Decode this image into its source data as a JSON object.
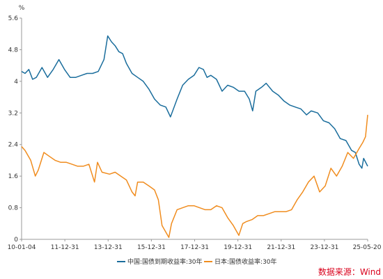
{
  "chart_data": {
    "type": "line",
    "title": "",
    "xlabel": "",
    "ylabel": "",
    "y_unit": "%",
    "xlim": [
      "2010-01-04",
      "2025-05-20"
    ],
    "ylim": [
      0,
      5.6
    ],
    "y_ticks": [
      "0",
      "0.8",
      "1.6",
      "2.4",
      "3.2",
      "4",
      "4.8",
      "5.6"
    ],
    "x_ticks": [
      "10-01-04",
      "11-12-31",
      "13-12-31",
      "15-12-31",
      "17-12-31",
      "19-12-31",
      "21-12-31",
      "23-12-31",
      "25-05-20"
    ],
    "grid": false,
    "legend_position": "bottom",
    "source": "数据来源：Wind",
    "series": [
      {
        "name": "中国:国债到期收益率:30年",
        "color": "#1a6d9c",
        "points": [
          [
            "2010-01-04",
            4.25
          ],
          [
            "2010-03-01",
            4.2
          ],
          [
            "2010-05-01",
            4.3
          ],
          [
            "2010-07-01",
            4.05
          ],
          [
            "2010-09-01",
            4.1
          ],
          [
            "2010-12-01",
            4.35
          ],
          [
            "2011-03-01",
            4.1
          ],
          [
            "2011-06-01",
            4.3
          ],
          [
            "2011-09-01",
            4.55
          ],
          [
            "2011-12-01",
            4.3
          ],
          [
            "2012-03-01",
            4.1
          ],
          [
            "2012-06-01",
            4.1
          ],
          [
            "2012-09-01",
            4.15
          ],
          [
            "2012-12-01",
            4.2
          ],
          [
            "2013-03-01",
            4.2
          ],
          [
            "2013-06-01",
            4.25
          ],
          [
            "2013-09-01",
            4.55
          ],
          [
            "2013-11-01",
            5.15
          ],
          [
            "2014-01-01",
            5.0
          ],
          [
            "2014-03-01",
            4.9
          ],
          [
            "2014-05-01",
            4.75
          ],
          [
            "2014-07-01",
            4.7
          ],
          [
            "2014-09-01",
            4.45
          ],
          [
            "2014-12-01",
            4.2
          ],
          [
            "2015-03-01",
            4.1
          ],
          [
            "2015-06-01",
            4.0
          ],
          [
            "2015-09-01",
            3.8
          ],
          [
            "2015-12-01",
            3.55
          ],
          [
            "2016-03-01",
            3.4
          ],
          [
            "2016-06-01",
            3.35
          ],
          [
            "2016-08-15",
            3.1
          ],
          [
            "2016-12-01",
            3.55
          ],
          [
            "2017-03-01",
            3.9
          ],
          [
            "2017-06-01",
            4.05
          ],
          [
            "2017-09-01",
            4.15
          ],
          [
            "2017-11-20",
            4.35
          ],
          [
            "2018-02-01",
            4.3
          ],
          [
            "2018-04-01",
            4.1
          ],
          [
            "2018-06-01",
            4.15
          ],
          [
            "2018-09-01",
            4.05
          ],
          [
            "2018-12-01",
            3.75
          ],
          [
            "2019-03-01",
            3.9
          ],
          [
            "2019-06-01",
            3.85
          ],
          [
            "2019-09-01",
            3.75
          ],
          [
            "2019-12-01",
            3.75
          ],
          [
            "2020-02-15",
            3.55
          ],
          [
            "2020-04-10",
            3.25
          ],
          [
            "2020-06-01",
            3.75
          ],
          [
            "2020-09-01",
            3.85
          ],
          [
            "2020-11-15",
            3.95
          ],
          [
            "2021-03-01",
            3.75
          ],
          [
            "2021-06-01",
            3.65
          ],
          [
            "2021-09-01",
            3.5
          ],
          [
            "2021-12-01",
            3.4
          ],
          [
            "2022-03-01",
            3.35
          ],
          [
            "2022-06-01",
            3.3
          ],
          [
            "2022-09-01",
            3.15
          ],
          [
            "2022-11-15",
            3.25
          ],
          [
            "2023-03-01",
            3.2
          ],
          [
            "2023-06-01",
            3.0
          ],
          [
            "2023-09-01",
            2.95
          ],
          [
            "2023-12-01",
            2.8
          ],
          [
            "2024-03-01",
            2.55
          ],
          [
            "2024-06-01",
            2.5
          ],
          [
            "2024-09-01",
            2.25
          ],
          [
            "2024-11-01",
            2.2
          ],
          [
            "2025-01-01",
            1.9
          ],
          [
            "2025-02-15",
            1.8
          ],
          [
            "2025-03-15",
            2.05
          ],
          [
            "2025-05-20",
            1.85
          ]
        ]
      },
      {
        "name": "日本:国债收益率:30年",
        "color": "#f08c1e",
        "points": [
          [
            "2010-01-04",
            2.35
          ],
          [
            "2010-03-01",
            2.25
          ],
          [
            "2010-06-01",
            2.0
          ],
          [
            "2010-08-15",
            1.6
          ],
          [
            "2010-10-01",
            1.75
          ],
          [
            "2011-01-01",
            2.2
          ],
          [
            "2011-04-01",
            2.1
          ],
          [
            "2011-07-01",
            2.0
          ],
          [
            "2011-10-01",
            1.95
          ],
          [
            "2012-01-01",
            1.95
          ],
          [
            "2012-04-01",
            1.9
          ],
          [
            "2012-07-01",
            1.85
          ],
          [
            "2012-10-01",
            1.85
          ],
          [
            "2013-01-01",
            1.9
          ],
          [
            "2013-04-01",
            1.45
          ],
          [
            "2013-05-20",
            1.95
          ],
          [
            "2013-08-01",
            1.7
          ],
          [
            "2013-12-01",
            1.65
          ],
          [
            "2014-03-01",
            1.7
          ],
          [
            "2014-06-01",
            1.6
          ],
          [
            "2014-09-01",
            1.5
          ],
          [
            "2014-12-01",
            1.2
          ],
          [
            "2015-01-20",
            1.1
          ],
          [
            "2015-03-01",
            1.45
          ],
          [
            "2015-06-01",
            1.45
          ],
          [
            "2015-09-01",
            1.35
          ],
          [
            "2015-12-01",
            1.25
          ],
          [
            "2016-02-01",
            1.0
          ],
          [
            "2016-04-01",
            0.35
          ],
          [
            "2016-07-20",
            0.05
          ],
          [
            "2016-09-01",
            0.4
          ],
          [
            "2016-12-01",
            0.75
          ],
          [
            "2017-03-01",
            0.8
          ],
          [
            "2017-06-01",
            0.85
          ],
          [
            "2017-09-01",
            0.85
          ],
          [
            "2017-12-01",
            0.8
          ],
          [
            "2018-03-01",
            0.75
          ],
          [
            "2018-06-01",
            0.75
          ],
          [
            "2018-09-01",
            0.85
          ],
          [
            "2018-12-01",
            0.8
          ],
          [
            "2019-03-01",
            0.55
          ],
          [
            "2019-06-01",
            0.35
          ],
          [
            "2019-08-30",
            0.1
          ],
          [
            "2019-11-01",
            0.4
          ],
          [
            "2020-01-01",
            0.45
          ],
          [
            "2020-04-01",
            0.5
          ],
          [
            "2020-07-01",
            0.6
          ],
          [
            "2020-10-01",
            0.6
          ],
          [
            "2021-01-01",
            0.65
          ],
          [
            "2021-04-01",
            0.7
          ],
          [
            "2021-07-01",
            0.7
          ],
          [
            "2021-10-01",
            0.7
          ],
          [
            "2022-01-01",
            0.75
          ],
          [
            "2022-04-01",
            1.0
          ],
          [
            "2022-07-01",
            1.2
          ],
          [
            "2022-10-01",
            1.45
          ],
          [
            "2023-01-01",
            1.6
          ],
          [
            "2023-04-01",
            1.2
          ],
          [
            "2023-07-01",
            1.35
          ],
          [
            "2023-10-01",
            1.8
          ],
          [
            "2024-01-01",
            1.6
          ],
          [
            "2024-04-01",
            1.85
          ],
          [
            "2024-07-01",
            2.2
          ],
          [
            "2024-10-01",
            2.05
          ],
          [
            "2025-01-01",
            2.3
          ],
          [
            "2025-03-01",
            2.45
          ],
          [
            "2025-04-15",
            2.6
          ],
          [
            "2025-05-20",
            3.15
          ]
        ]
      }
    ]
  }
}
